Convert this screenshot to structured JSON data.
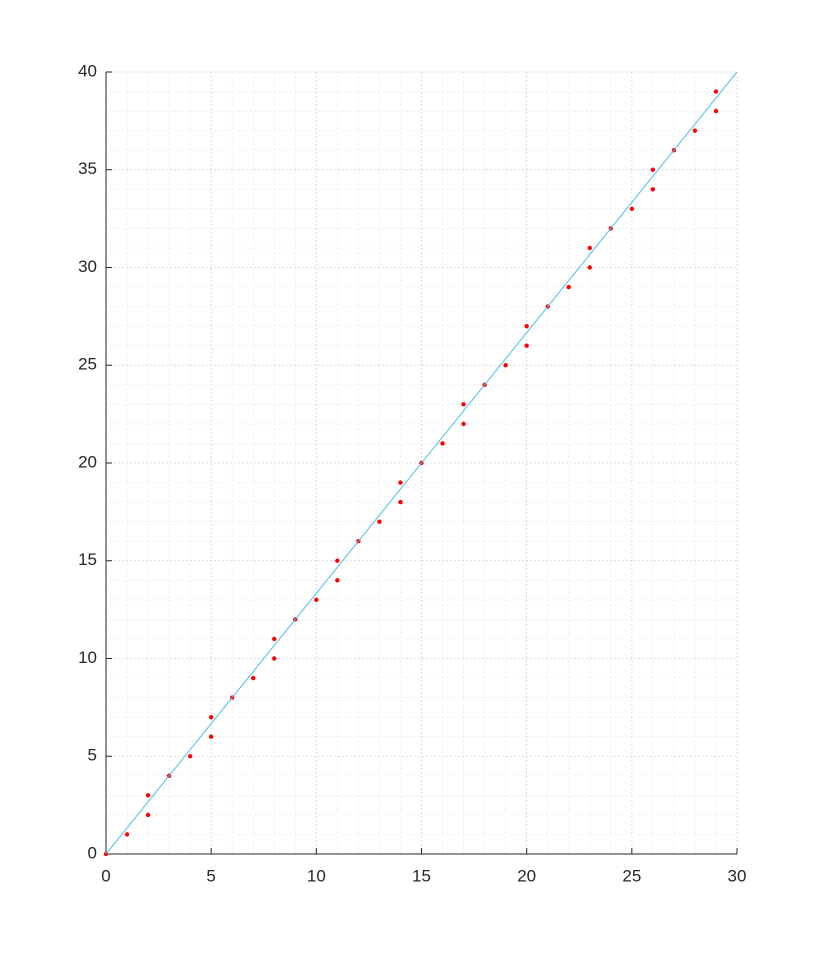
{
  "chart_data": {
    "type": "scatter",
    "xlim": [
      0,
      30
    ],
    "xticks": [
      0,
      5,
      10,
      15,
      20,
      25,
      30
    ],
    "ylim": [
      0,
      40
    ],
    "yticks": [
      0,
      5,
      10,
      15,
      20,
      25,
      30,
      35,
      40
    ],
    "grid": true,
    "minor_grid": true,
    "series": [
      {
        "marker": "point",
        "color": "#ff0000",
        "x": [
          0,
          1,
          2,
          2,
          3,
          4,
          5,
          5,
          6,
          7,
          8,
          8,
          9,
          10,
          11,
          11,
          12,
          13,
          14,
          14,
          15,
          16,
          17,
          17,
          18,
          19,
          20,
          20,
          21,
          22,
          23,
          23,
          24,
          25,
          26,
          26,
          27,
          28,
          29,
          29
        ],
        "y": [
          0,
          1,
          2,
          3,
          4,
          5,
          6,
          7,
          8,
          9,
          10,
          11,
          12,
          13,
          14,
          15,
          16,
          17,
          18,
          19,
          20,
          21,
          22,
          23,
          24,
          25,
          26,
          27,
          28,
          29,
          30,
          31,
          32,
          33,
          34,
          35,
          36,
          37,
          38,
          39
        ]
      },
      {
        "marker": "line",
        "color": "#4dbeee",
        "x": [
          0,
          30
        ],
        "y": [
          0,
          40
        ]
      }
    ]
  }
}
